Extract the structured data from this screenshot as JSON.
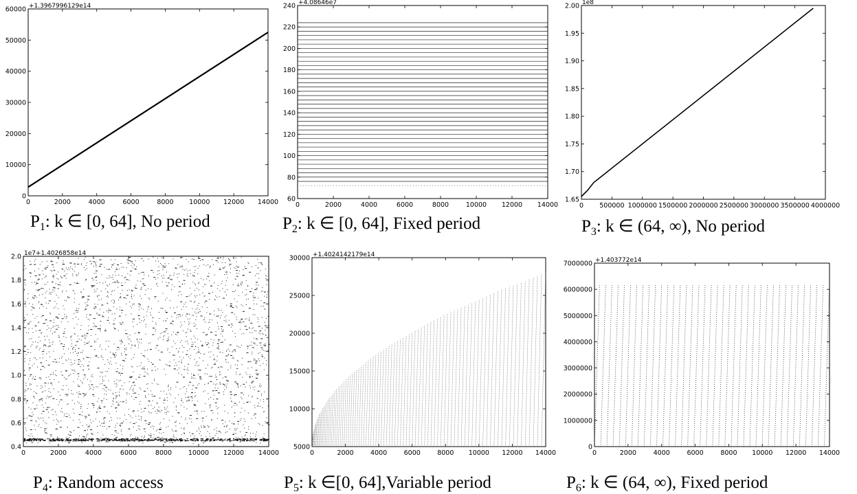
{
  "chart_data": [
    {
      "id": "p1",
      "type": "line",
      "caption": {
        "prefix": "P",
        "sub": "1",
        "text": ": k ∈ [0, 64],  No period"
      },
      "y_offset_label": "+1.3967996129e14",
      "xlim": [
        0,
        14000
      ],
      "ylim": [
        0,
        60000
      ],
      "xticks": [
        0,
        2000,
        4000,
        6000,
        8000,
        10000,
        12000,
        14000
      ],
      "yticks": [
        0,
        10000,
        20000,
        30000,
        40000,
        50000,
        60000
      ],
      "x_tick_labels": [
        "0",
        "2000",
        "4000",
        "6000",
        "8000",
        "10000",
        "12000",
        "14000"
      ],
      "y_tick_labels": [
        "0",
        "10000",
        "20000",
        "30000",
        "40000",
        "50000",
        "60000"
      ],
      "series": [
        {
          "x": [
            0,
            14000
          ],
          "y": [
            2800,
            52500
          ]
        }
      ]
    },
    {
      "id": "p2",
      "type": "scatter",
      "caption": {
        "prefix": "P",
        "sub": "2",
        "text": ": k ∈  [0, 64], Fixed period"
      },
      "y_offset_label": "+4.08646e7",
      "xlim": [
        0,
        14000
      ],
      "ylim": [
        60,
        240
      ],
      "xticks": [
        0,
        2000,
        4000,
        6000,
        8000,
        10000,
        12000,
        14000
      ],
      "yticks": [
        60,
        80,
        100,
        120,
        140,
        160,
        180,
        200,
        220,
        240
      ],
      "x_tick_labels": [
        "0",
        "2000",
        "4000",
        "6000",
        "8000",
        "10000",
        "12000",
        "14000"
      ],
      "y_tick_labels": [
        "60",
        "80",
        "100",
        "120",
        "140",
        "160",
        "180",
        "200",
        "220",
        "240"
      ],
      "pattern": "horizontal_bands",
      "band_y_start": 72,
      "band_y_end": 224,
      "band_step": 4,
      "band_x": [
        0,
        14000
      ]
    },
    {
      "id": "p3",
      "type": "line",
      "caption": {
        "prefix": "P",
        "sub": "3",
        "text": ":  k ∈ (64, ∞), No period"
      },
      "y_offset_label": "1e8",
      "xlim": [
        0,
        4000000
      ],
      "ylim": [
        1.65,
        2.0
      ],
      "xticks": [
        0,
        500000,
        1000000,
        1500000,
        2000000,
        2500000,
        3000000,
        3500000,
        4000000
      ],
      "yticks": [
        1.65,
        1.7,
        1.75,
        1.8,
        1.85,
        1.9,
        1.95,
        2.0
      ],
      "x_tick_labels": [
        "0",
        "500000",
        "1000000",
        "1500000",
        "2000000",
        "2500000",
        "3000000",
        "3500000",
        "4000000"
      ],
      "y_tick_labels": [
        "1.65",
        "1.70",
        "1.75",
        "1.80",
        "1.85",
        "1.90",
        "1.95",
        "2.00"
      ],
      "series": [
        {
          "x": [
            0,
            100000,
            200000,
            3800000
          ],
          "y": [
            1.655,
            1.666,
            1.68,
            1.995
          ]
        }
      ]
    },
    {
      "id": "p4",
      "type": "scatter",
      "caption": {
        "prefix": "P",
        "sub": "4",
        "text": ":     Random access"
      },
      "y_offset_label": "1e7+1.4026858e14",
      "xlim": [
        0,
        14000
      ],
      "ylim": [
        0.4,
        2.0
      ],
      "xticks": [
        0,
        2000,
        4000,
        6000,
        8000,
        10000,
        12000,
        14000
      ],
      "yticks": [
        0.4,
        0.6,
        0.8,
        1.0,
        1.2,
        1.4,
        1.6,
        1.8,
        2.0
      ],
      "x_tick_labels": [
        "0",
        "2000",
        "4000",
        "6000",
        "8000",
        "10000",
        "12000",
        "14000"
      ],
      "y_tick_labels": [
        "0.4",
        "0.6",
        "0.8",
        "1.0",
        "1.2",
        "1.4",
        "1.6",
        "1.8",
        "2.0"
      ],
      "pattern": "random",
      "n_points": 2600,
      "dense_band_y": 0.46
    },
    {
      "id": "p5",
      "type": "scatter",
      "caption": {
        "prefix": "P",
        "sub": "5",
        "text": ": k ∈[0, 64],Variable period"
      },
      "y_offset_label": "+1.4024142179e14",
      "xlim": [
        0,
        14000
      ],
      "ylim": [
        5000,
        30000
      ],
      "xticks": [
        0,
        2000,
        4000,
        6000,
        8000,
        10000,
        12000,
        14000
      ],
      "yticks": [
        5000,
        10000,
        15000,
        20000,
        25000,
        30000
      ],
      "x_tick_labels": [
        "0",
        "2000",
        "4000",
        "6000",
        "8000",
        "10000",
        "12000",
        "14000"
      ],
      "y_tick_labels": [
        "5000",
        "10000",
        "15000",
        "20000",
        "25000",
        "30000"
      ],
      "pattern": "sawtooth_growing",
      "y_base": 5200,
      "y_peak_end": 28000,
      "n_teeth": 90
    },
    {
      "id": "p6",
      "type": "scatter",
      "caption": {
        "prefix": "P",
        "sub": "6",
        "text": ": k ∈ (64, ∞), Fixed period"
      },
      "y_offset_label": "+1.403772e14",
      "xlim": [
        0,
        14000
      ],
      "ylim": [
        0,
        7000000
      ],
      "xticks": [
        0,
        2000,
        4000,
        6000,
        8000,
        10000,
        12000,
        14000
      ],
      "yticks": [
        0,
        1000000,
        2000000,
        3000000,
        4000000,
        5000000,
        6000000,
        7000000
      ],
      "x_tick_labels": [
        "0",
        "2000",
        "4000",
        "6000",
        "8000",
        "10000",
        "12000",
        "14000"
      ],
      "y_tick_labels": [
        "0",
        "1000000",
        "2000000",
        "3000000",
        "4000000",
        "5000000",
        "6000000",
        "7000000"
      ],
      "pattern": "sawtooth_fixed",
      "y_peak": 6200000,
      "period": 370
    }
  ]
}
